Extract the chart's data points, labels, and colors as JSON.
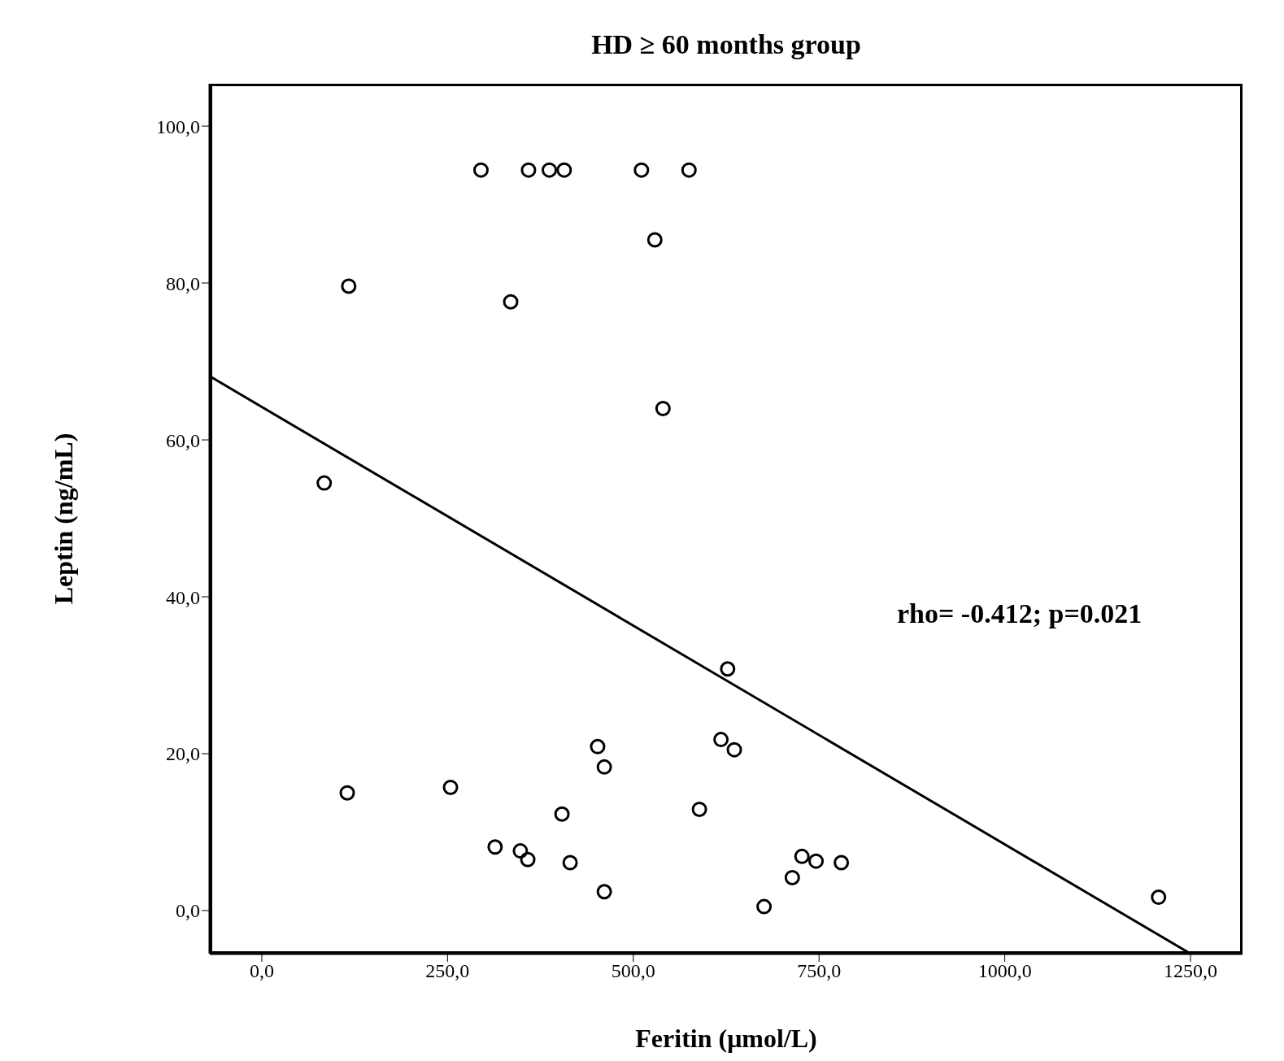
{
  "chart_data": {
    "type": "scatter",
    "title": "HD ≥ 60 months group",
    "xlabel": "Feritin (μmol/L)",
    "ylabel": "Leptin (ng/mL)",
    "annotations": [
      "rho= -0.412; p=0.021"
    ],
    "xlim": [
      -70,
      1320
    ],
    "xticks": [
      {
        "value": 0,
        "label": "0,0"
      },
      {
        "value": 250,
        "label": "250,0"
      },
      {
        "value": 500,
        "label": "500,0"
      },
      {
        "value": 750,
        "label": "750,0"
      },
      {
        "value": 1000,
        "label": "1000,0"
      },
      {
        "value": 1250,
        "label": "1250,0"
      }
    ],
    "ylim": [
      -5.5,
      105.4
    ],
    "yticks": [
      {
        "value": 0,
        "label": "0,0"
      },
      {
        "value": 20,
        "label": "20,0"
      },
      {
        "value": 40,
        "label": "40,0"
      },
      {
        "value": 60,
        "label": "60,0"
      },
      {
        "value": 80,
        "label": "80,0"
      },
      {
        "value": 100,
        "label": "100,0"
      }
    ],
    "series": [
      {
        "color": "#000000",
        "marker": "circle",
        "x": [
          295,
          359,
          387,
          407,
          511,
          575,
          529,
          117,
          335,
          540,
          84,
          627,
          452,
          461,
          618,
          636,
          115,
          254,
          404,
          589,
          314,
          348,
          358,
          415,
          461,
          676,
          714,
          727,
          746,
          780,
          1207
        ],
        "values": [
          94.4,
          94.4,
          94.4,
          94.4,
          94.4,
          94.4,
          85.5,
          79.6,
          77.6,
          64,
          54.5,
          30.8,
          20.9,
          18.3,
          21.8,
          20.5,
          15,
          15.7,
          12.3,
          12.9,
          8.1,
          7.6,
          6.5,
          6.1,
          2.4,
          0.5,
          4.2,
          6.9,
          6.3,
          6.1,
          1.7
        ]
      },
      {
        "type": "line",
        "marker": "none",
        "color": "#000000",
        "x": [
          -70,
          1250
        ],
        "values": [
          68.1,
          -5.5
        ]
      }
    ]
  }
}
